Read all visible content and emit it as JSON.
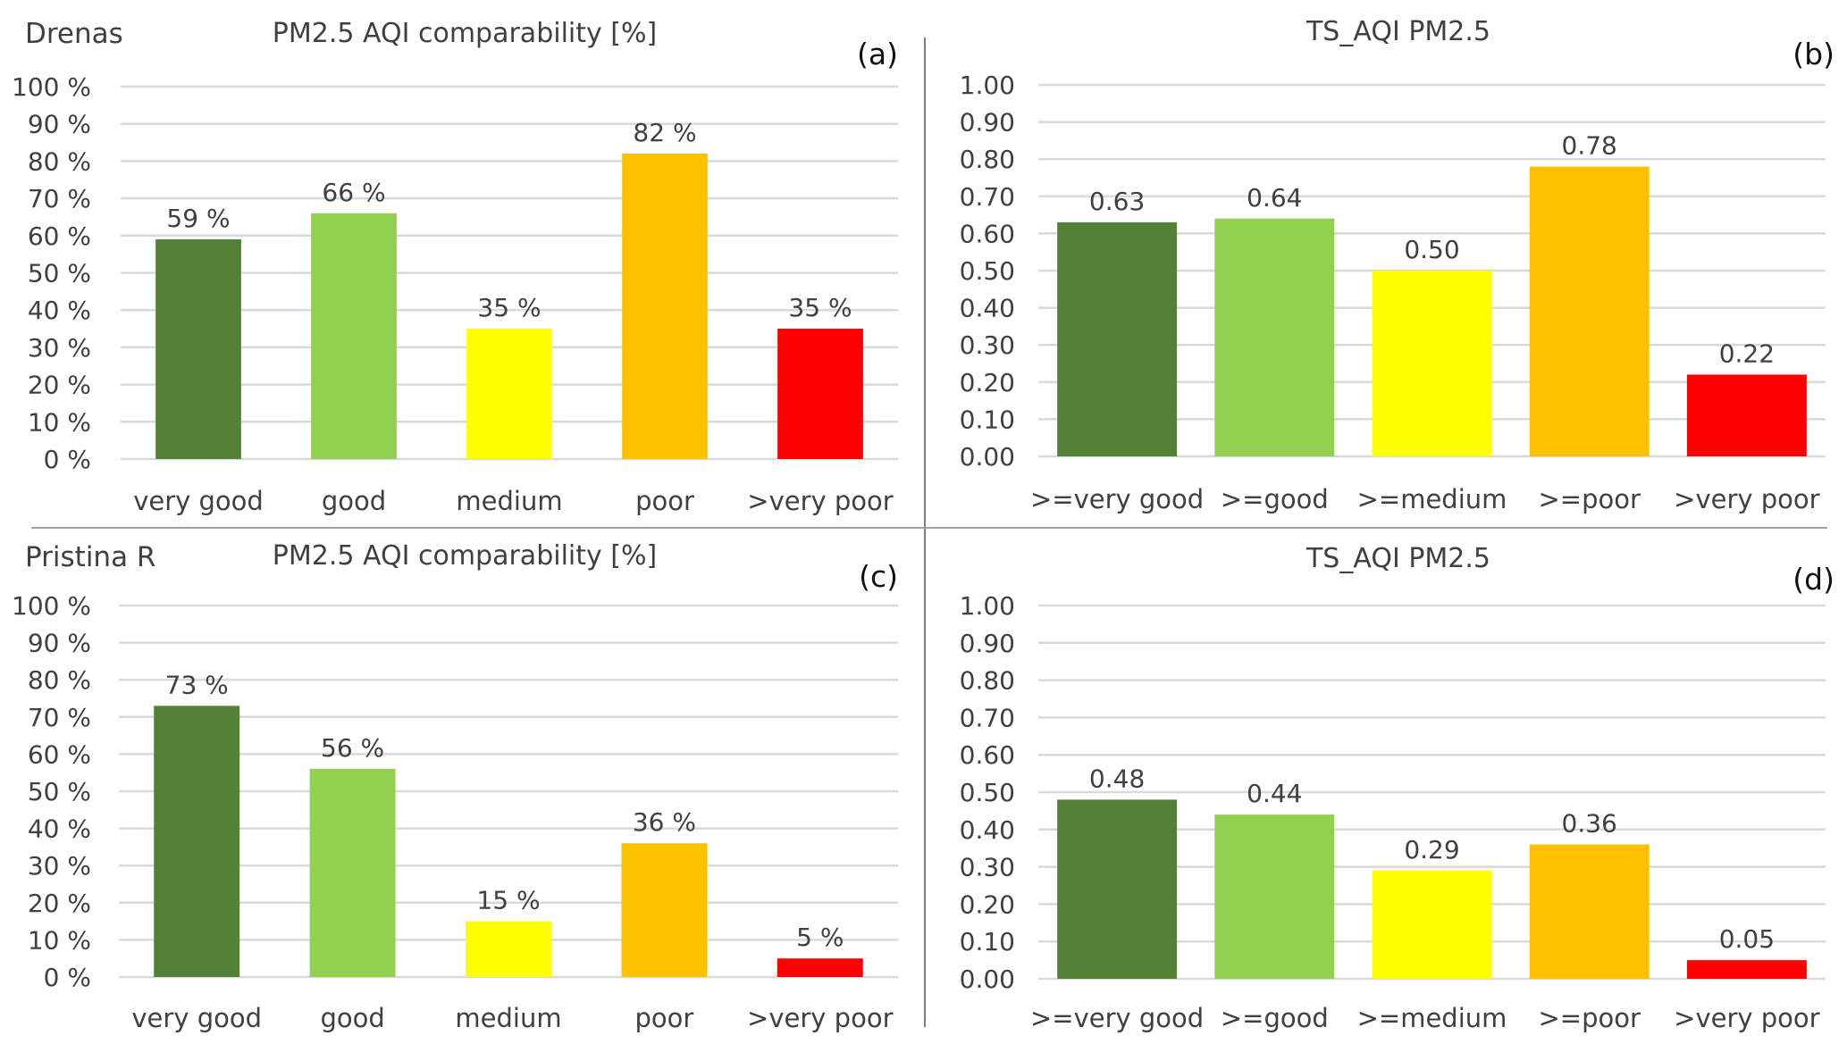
{
  "figure": {
    "colors": {
      "very_good": "#538135",
      "good": "#92D050",
      "medium": "#FFFF00",
      "poor": "#FFC000",
      "very_poor": "#FF0000",
      "grid": "#D9D9D9",
      "text": "#404040",
      "divider": "#808080"
    }
  },
  "chart_data": [
    {
      "id": "a",
      "type": "bar",
      "panel_label": "(a)",
      "station": "Drenas",
      "title": "PM2.5 AQI comparability [%]",
      "xlabel": "",
      "ylabel": "",
      "categories": [
        "very good",
        "good",
        "medium",
        "poor",
        ">very poor"
      ],
      "values": [
        59,
        66,
        35,
        82,
        35
      ],
      "value_labels": [
        "59 %",
        "66 %",
        "35 %",
        "82 %",
        "35 %"
      ],
      "ylim": [
        0,
        100
      ],
      "yticks": [
        0,
        10,
        20,
        30,
        40,
        50,
        60,
        70,
        80,
        90,
        100
      ],
      "ytick_labels": [
        "0 %",
        "10 %",
        "20 %",
        "30 %",
        "40 %",
        "50 %",
        "60 %",
        "70 %",
        "80 %",
        "90 %",
        "100 %"
      ],
      "grid": true,
      "legend": "none"
    },
    {
      "id": "b",
      "type": "bar",
      "panel_label": "(b)",
      "station": "",
      "title": "TS_AQI PM2.5",
      "xlabel": "",
      "ylabel": "",
      "categories": [
        ">=very good",
        ">=good",
        ">=medium",
        ">=poor",
        ">very poor"
      ],
      "values": [
        0.63,
        0.64,
        0.5,
        0.78,
        0.22
      ],
      "value_labels": [
        "0.63",
        "0.64",
        "0.50",
        "0.78",
        "0.22"
      ],
      "ylim": [
        0,
        1
      ],
      "yticks": [
        0,
        0.1,
        0.2,
        0.3,
        0.4,
        0.5,
        0.6,
        0.7,
        0.8,
        0.9,
        1.0
      ],
      "ytick_labels": [
        "0.00",
        "0.10",
        "0.20",
        "0.30",
        "0.40",
        "0.50",
        "0.60",
        "0.70",
        "0.80",
        "0.90",
        "1.00"
      ],
      "grid": true,
      "legend": "none"
    },
    {
      "id": "c",
      "type": "bar",
      "panel_label": "(c)",
      "station": "Pristina R",
      "title": "PM2.5 AQI comparability [%]",
      "xlabel": "",
      "ylabel": "",
      "categories": [
        "very good",
        "good",
        "medium",
        "poor",
        ">very poor"
      ],
      "values": [
        73,
        56,
        15,
        36,
        5
      ],
      "value_labels": [
        "73 %",
        "56 %",
        "15 %",
        "36 %",
        "5 %"
      ],
      "ylim": [
        0,
        100
      ],
      "yticks": [
        0,
        10,
        20,
        30,
        40,
        50,
        60,
        70,
        80,
        90,
        100
      ],
      "ytick_labels": [
        "0 %",
        "10 %",
        "20 %",
        "30 %",
        "40 %",
        "50 %",
        "60 %",
        "70 %",
        "80 %",
        "90 %",
        "100 %"
      ],
      "grid": true,
      "legend": "none"
    },
    {
      "id": "d",
      "type": "bar",
      "panel_label": "(d)",
      "station": "",
      "title": "TS_AQI PM2.5",
      "xlabel": "",
      "ylabel": "",
      "categories": [
        ">=very good",
        ">=good",
        ">=medium",
        ">=poor",
        ">very poor"
      ],
      "values": [
        0.48,
        0.44,
        0.29,
        0.36,
        0.05
      ],
      "value_labels": [
        "0.48",
        "0.44",
        "0.29",
        "0.36",
        "0.05"
      ],
      "ylim": [
        0,
        1
      ],
      "yticks": [
        0,
        0.1,
        0.2,
        0.3,
        0.4,
        0.5,
        0.6,
        0.7,
        0.8,
        0.9,
        1.0
      ],
      "ytick_labels": [
        "0.00",
        "0.10",
        "0.20",
        "0.30",
        "0.40",
        "0.50",
        "0.60",
        "0.70",
        "0.80",
        "0.90",
        "1.00"
      ],
      "grid": true,
      "legend": "none"
    }
  ]
}
